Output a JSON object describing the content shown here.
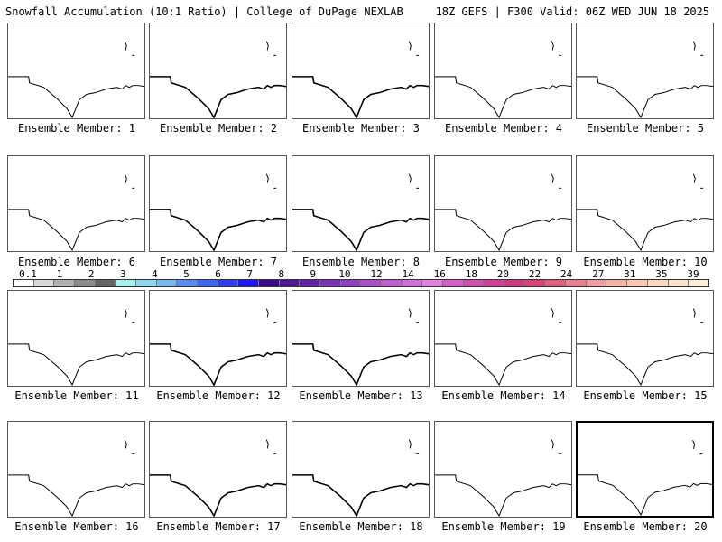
{
  "header": {
    "title_left": "Snowfall Accumulation (10:1 Ratio) | College of DuPage NEXLAB",
    "title_right": "18Z GEFS | F300 Valid: 06Z WED JUN 18 2025"
  },
  "members": [
    "Ensemble Member: 1",
    "Ensemble Member: 2",
    "Ensemble Member: 3",
    "Ensemble Member: 4",
    "Ensemble Member: 5",
    "Ensemble Member: 6",
    "Ensemble Member: 7",
    "Ensemble Member: 8",
    "Ensemble Member: 9",
    "Ensemble Member: 10",
    "Ensemble Member: 11",
    "Ensemble Member: 12",
    "Ensemble Member: 13",
    "Ensemble Member: 14",
    "Ensemble Member: 15",
    "Ensemble Member: 16",
    "Ensemble Member: 17",
    "Ensemble Member: 18",
    "Ensemble Member: 19",
    "Ensemble Member: 20"
  ],
  "selected_member": 20,
  "colorbar": {
    "labels": [
      "0.1",
      "1",
      "2",
      "3",
      "4",
      "5",
      "6",
      "7",
      "8",
      "9",
      "10",
      "12",
      "14",
      "16",
      "18",
      "20",
      "22",
      "24",
      "27",
      "31",
      "35",
      "39"
    ],
    "colors": [
      "#ffffff",
      "#d8d8d8",
      "#b0b0b0",
      "#8c8c8c",
      "#646464",
      "#a6f0f0",
      "#8fd6ee",
      "#7ab6f2",
      "#5a8cf8",
      "#3e66fa",
      "#2e3cfa",
      "#1e18f6",
      "#3a0a8a",
      "#501896",
      "#6020a8",
      "#7830b4",
      "#9040c0",
      "#a850c8",
      "#c060d0",
      "#d070d8",
      "#e080e0",
      "#d860c8",
      "#d050b0",
      "#d04098",
      "#d03880",
      "#d84078",
      "#e06080",
      "#e88090",
      "#f09ca0",
      "#f4b4a8",
      "#f8c8b0",
      "#fcd8c0",
      "#fce4cc",
      "#fff0dc"
    ]
  }
}
